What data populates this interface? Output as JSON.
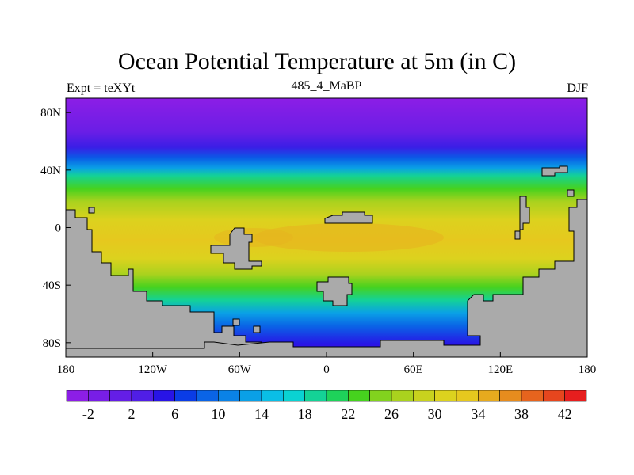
{
  "header": {
    "title": "Ocean Potential Temperature at 5m (in C)",
    "left_label": "Expt = teXYt",
    "center_label": "485_4_MaBP",
    "right_label": "DJF"
  },
  "map": {
    "lon_range": [
      -180,
      180
    ],
    "lat_range": [
      -90,
      90
    ],
    "x_ticks": [
      {
        "lon": -180,
        "label": "180"
      },
      {
        "lon": -120,
        "label": "120W"
      },
      {
        "lon": -60,
        "label": "60W"
      },
      {
        "lon": 0,
        "label": "0"
      },
      {
        "lon": 60,
        "label": "60E"
      },
      {
        "lon": 120,
        "label": "120E"
      },
      {
        "lon": 180,
        "label": "180"
      }
    ],
    "y_ticks": [
      {
        "lat": 80,
        "label": "80N"
      },
      {
        "lat": 40,
        "label": "40N"
      },
      {
        "lat": 0,
        "label": "0"
      },
      {
        "lat": -40,
        "label": "40S"
      },
      {
        "lat": -80,
        "label": "80S"
      }
    ],
    "land_color": "#aaaaaa"
  },
  "colorbar": {
    "min": -4,
    "step": 2,
    "colors": [
      "#8c1ee6",
      "#781ee6",
      "#641ee6",
      "#501ee6",
      "#2814e6",
      "#0a3ce6",
      "#0a64e6",
      "#0a82e6",
      "#0aa0e6",
      "#0abee6",
      "#0ad2d2",
      "#14d296",
      "#1ed25a",
      "#46d21e",
      "#82d21e",
      "#aad21e",
      "#c8d21e",
      "#dcd21e",
      "#e6c81e",
      "#e6aa1e",
      "#e68c1e",
      "#e6641e",
      "#e6461e",
      "#e61e1e"
    ],
    "labels": [
      "-2",
      "2",
      "6",
      "10",
      "14",
      "18",
      "22",
      "26",
      "30",
      "34",
      "38",
      "42"
    ]
  }
}
